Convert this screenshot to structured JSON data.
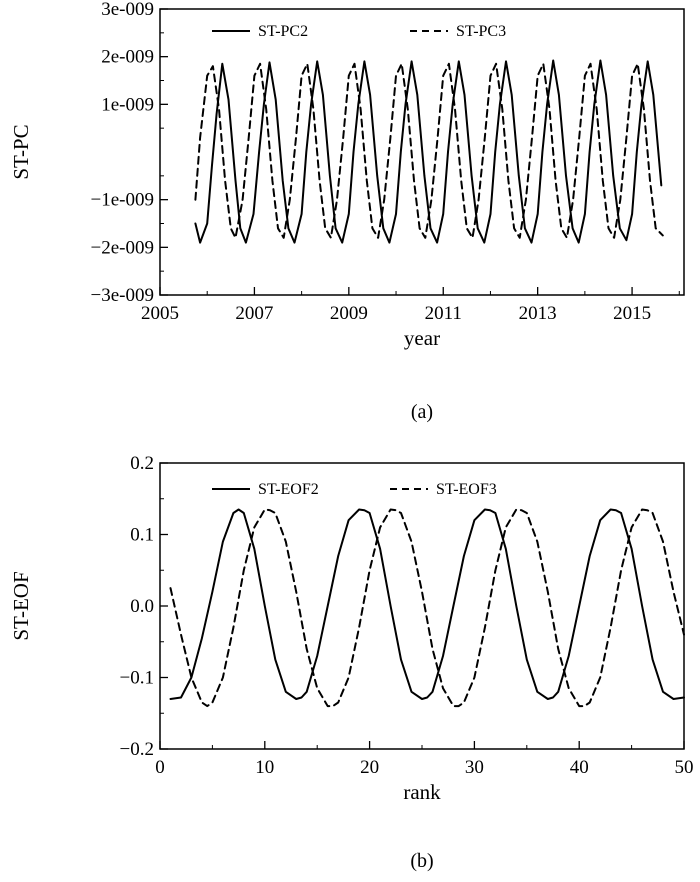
{
  "chart_data": [
    {
      "type": "line",
      "caption": "(a)",
      "xlabel": "year",
      "ylabel": "ST-PC",
      "xlim": [
        2005.7,
        2015.65
      ],
      "ylim": [
        -3e-09,
        3e-09
      ],
      "xticks": [
        2005,
        2007,
        2009,
        2011,
        2013,
        2015
      ],
      "xtick_labels": [
        "2005",
        "2007",
        "2009",
        "2011",
        "2013",
        "2015"
      ],
      "yticks": [
        -3e-09,
        -2e-09,
        -1e-09,
        1e-09,
        2e-09,
        3e-09
      ],
      "ytick_labels": [
        "−3e-009",
        "−2e-009",
        "−1e-009",
        "1e-009",
        "2e-009",
        "3e-009"
      ],
      "legend": "top",
      "grid": false,
      "series": [
        {
          "name": "ST-PC2",
          "style": "solid",
          "x": [
            2005.75,
            2005.85,
            2006.0,
            2006.1,
            2006.2,
            2006.32,
            2006.45,
            2006.6,
            2006.7,
            2006.82,
            2006.98,
            2007.1,
            2007.2,
            2007.32,
            2007.45,
            2007.6,
            2007.72,
            2007.85,
            2008.0,
            2008.1,
            2008.2,
            2008.33,
            2008.45,
            2008.6,
            2008.72,
            2008.86,
            2009.0,
            2009.1,
            2009.2,
            2009.33,
            2009.45,
            2009.6,
            2009.73,
            2009.86,
            2010.0,
            2010.1,
            2010.2,
            2010.33,
            2010.45,
            2010.6,
            2010.73,
            2010.87,
            2011.0,
            2011.1,
            2011.2,
            2011.33,
            2011.45,
            2011.6,
            2011.73,
            2011.87,
            2012.0,
            2012.1,
            2012.2,
            2012.33,
            2012.45,
            2012.6,
            2012.73,
            2012.87,
            2013.0,
            2013.1,
            2013.2,
            2013.33,
            2013.45,
            2013.6,
            2013.74,
            2013.87,
            2014.0,
            2014.1,
            2014.2,
            2014.33,
            2014.45,
            2014.6,
            2014.74,
            2014.88,
            2015.0,
            2015.1,
            2015.2,
            2015.33,
            2015.45,
            2015.62
          ],
          "y": [
            -1.5e-09,
            -1.9e-09,
            -1.5e-09,
            -3e-10,
            8e-10,
            1.85e-09,
            1.1e-09,
            -6e-10,
            -1.6e-09,
            -1.9e-09,
            -1.3e-09,
            0.0,
            1e-09,
            1.88e-09,
            1.1e-09,
            -6e-10,
            -1.6e-09,
            -1.9e-09,
            -1.3e-09,
            0.0,
            1e-09,
            1.9e-09,
            1.2e-09,
            -5e-10,
            -1.6e-09,
            -1.9e-09,
            -1.3e-09,
            0.0,
            1e-09,
            1.9e-09,
            1.2e-09,
            -5e-10,
            -1.6e-09,
            -1.9e-09,
            -1.3e-09,
            0.0,
            1e-09,
            1.9e-09,
            1.2e-09,
            -5e-10,
            -1.6e-09,
            -1.9e-09,
            -1.3e-09,
            0.0,
            1e-09,
            1.9e-09,
            1.2e-09,
            -5e-10,
            -1.6e-09,
            -1.9e-09,
            -1.3e-09,
            0.0,
            1e-09,
            1.9e-09,
            1.2e-09,
            -5e-10,
            -1.6e-09,
            -1.9e-09,
            -1.3e-09,
            0.0,
            1e-09,
            1.92e-09,
            1.2e-09,
            -5e-10,
            -1.6e-09,
            -1.9e-09,
            -1.3e-09,
            0.0,
            1e-09,
            1.92e-09,
            1.2e-09,
            -5e-10,
            -1.6e-09,
            -1.85e-09,
            -1.3e-09,
            0.0,
            1e-09,
            1.9e-09,
            1.2e-09,
            -7e-10
          ]
        },
        {
          "name": "ST-PC3",
          "style": "dashed",
          "x": [
            2005.75,
            2005.85,
            2006.0,
            2006.12,
            2006.25,
            2006.38,
            2006.5,
            2006.6,
            2006.75,
            2006.88,
            2007.0,
            2007.12,
            2007.25,
            2007.38,
            2007.5,
            2007.62,
            2007.75,
            2007.88,
            2008.0,
            2008.12,
            2008.25,
            2008.38,
            2008.5,
            2008.62,
            2008.75,
            2008.88,
            2009.0,
            2009.12,
            2009.25,
            2009.38,
            2009.5,
            2009.62,
            2009.75,
            2009.88,
            2010.0,
            2010.12,
            2010.25,
            2010.38,
            2010.5,
            2010.62,
            2010.75,
            2010.88,
            2011.0,
            2011.12,
            2011.25,
            2011.38,
            2011.5,
            2011.62,
            2011.75,
            2011.88,
            2012.0,
            2012.12,
            2012.25,
            2012.38,
            2012.5,
            2012.62,
            2012.75,
            2012.88,
            2013.0,
            2013.12,
            2013.25,
            2013.38,
            2013.5,
            2013.62,
            2013.75,
            2013.88,
            2014.0,
            2014.12,
            2014.25,
            2014.38,
            2014.5,
            2014.62,
            2014.75,
            2014.88,
            2015.0,
            2015.12,
            2015.25,
            2015.38,
            2015.5,
            2015.65
          ],
          "y": [
            -1e-09,
            3e-10,
            1.6e-09,
            1.8e-09,
            9e-10,
            -6e-10,
            -1.6e-09,
            -1.8e-09,
            -1e-09,
            3e-10,
            1.6e-09,
            1.85e-09,
            9e-10,
            -6e-10,
            -1.6e-09,
            -1.8e-09,
            -1e-09,
            3e-10,
            1.6e-09,
            1.85e-09,
            9e-10,
            -6e-10,
            -1.6e-09,
            -1.8e-09,
            -1e-09,
            3e-10,
            1.6e-09,
            1.85e-09,
            9e-10,
            -6e-10,
            -1.6e-09,
            -1.8e-09,
            -1e-09,
            3e-10,
            1.6e-09,
            1.85e-09,
            9e-10,
            -6e-10,
            -1.6e-09,
            -1.8e-09,
            -1e-09,
            3e-10,
            1.6e-09,
            1.85e-09,
            9e-10,
            -6e-10,
            -1.6e-09,
            -1.8e-09,
            -1e-09,
            3e-10,
            1.6e-09,
            1.85e-09,
            9e-10,
            -6e-10,
            -1.6e-09,
            -1.8e-09,
            -1e-09,
            3e-10,
            1.6e-09,
            1.85e-09,
            9e-10,
            -6e-10,
            -1.6e-09,
            -1.8e-09,
            -1e-09,
            3e-10,
            1.6e-09,
            1.85e-09,
            9e-10,
            -6e-10,
            -1.6e-09,
            -1.8e-09,
            -1e-09,
            3e-10,
            1.6e-09,
            1.85e-09,
            9e-10,
            -6e-10,
            -1.6e-09,
            -1.75e-09
          ]
        }
      ]
    },
    {
      "type": "line",
      "caption": "(b)",
      "xlabel": "rank",
      "ylabel": "ST-EOF",
      "xlim": [
        0,
        50
      ],
      "ylim": [
        -0.2,
        0.2
      ],
      "xticks": [
        0,
        10,
        20,
        30,
        40,
        50
      ],
      "xtick_labels": [
        "0",
        "10",
        "20",
        "30",
        "40",
        "50"
      ],
      "yticks": [
        -0.2,
        -0.1,
        0.0,
        0.1,
        0.2
      ],
      "ytick_labels": [
        "−0.2",
        "−0.1",
        "0.0",
        "0.1",
        "0.2"
      ],
      "legend": "top",
      "grid": false,
      "series": [
        {
          "name": "ST-EOF2",
          "style": "solid",
          "x": [
            1,
            2,
            3,
            4,
            5,
            6,
            7,
            7.5,
            8,
            9,
            10,
            11,
            12,
            13,
            13.5,
            14,
            15,
            16,
            17,
            18,
            19,
            19.5,
            20,
            21,
            22,
            23,
            24,
            25,
            25.5,
            26,
            27,
            28,
            29,
            30,
            31,
            31.5,
            32,
            33,
            34,
            35,
            36,
            37,
            37.5,
            38,
            39,
            40,
            41,
            42,
            43,
            43.5,
            44,
            45,
            46,
            47,
            48,
            49,
            50
          ],
          "y": [
            -0.13,
            -0.128,
            -0.1,
            -0.045,
            0.02,
            0.09,
            0.13,
            0.135,
            0.13,
            0.08,
            0.0,
            -0.075,
            -0.12,
            -0.13,
            -0.128,
            -0.12,
            -0.07,
            0.0,
            0.07,
            0.12,
            0.135,
            0.134,
            0.13,
            0.08,
            0.0,
            -0.075,
            -0.12,
            -0.13,
            -0.128,
            -0.12,
            -0.07,
            0.0,
            0.07,
            0.12,
            0.135,
            0.134,
            0.13,
            0.08,
            0.0,
            -0.075,
            -0.12,
            -0.13,
            -0.128,
            -0.12,
            -0.07,
            0.0,
            0.07,
            0.12,
            0.135,
            0.134,
            0.13,
            0.08,
            0.0,
            -0.075,
            -0.12,
            -0.13,
            -0.128
          ]
        },
        {
          "name": "ST-EOF3",
          "style": "dashed",
          "x": [
            1,
            2,
            3,
            4,
            4.5,
            5,
            6,
            7,
            8,
            9,
            10,
            10.5,
            11,
            12,
            13,
            14,
            15,
            16,
            16.5,
            17,
            18,
            19,
            20,
            21,
            22,
            22.5,
            23,
            24,
            25,
            26,
            27,
            28,
            28.5,
            29,
            30,
            31,
            32,
            33,
            34,
            34.5,
            35,
            36,
            37,
            38,
            39,
            40,
            40.5,
            41,
            42,
            43,
            44,
            45,
            46,
            46.5,
            47,
            48,
            49,
            50
          ],
          "y": [
            0.025,
            -0.04,
            -0.1,
            -0.135,
            -0.14,
            -0.135,
            -0.1,
            -0.03,
            0.05,
            0.11,
            0.135,
            0.134,
            0.13,
            0.09,
            0.02,
            -0.06,
            -0.115,
            -0.14,
            -0.14,
            -0.135,
            -0.1,
            -0.03,
            0.05,
            0.11,
            0.135,
            0.134,
            0.13,
            0.09,
            0.02,
            -0.06,
            -0.115,
            -0.14,
            -0.14,
            -0.135,
            -0.1,
            -0.03,
            0.05,
            0.11,
            0.135,
            0.134,
            0.13,
            0.09,
            0.02,
            -0.06,
            -0.115,
            -0.14,
            -0.14,
            -0.135,
            -0.1,
            -0.03,
            0.05,
            0.11,
            0.135,
            0.134,
            0.13,
            0.09,
            0.02,
            -0.04
          ]
        }
      ]
    }
  ]
}
